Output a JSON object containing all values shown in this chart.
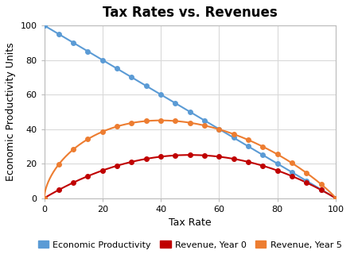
{
  "title": "Tax Rates vs. Revenues",
  "xlabel": "Tax Rate",
  "ylabel": "Economic Productivity Units",
  "xlim": [
    0,
    100
  ],
  "ylim": [
    0,
    100
  ],
  "xticks": [
    0,
    20,
    40,
    60,
    80,
    100
  ],
  "yticks": [
    0,
    20,
    40,
    60,
    80,
    100
  ],
  "line_color_productivity": "#5B9BD5",
  "line_color_year0": "#C00000",
  "line_color_year5": "#ED7D31",
  "marker_style": "o",
  "marker_size": 4,
  "legend_labels": [
    "Economic Productivity",
    "Revenue, Year 0",
    "Revenue, Year 5"
  ],
  "background_color": "#FFFFFF",
  "grid_color": "#D9D9D9",
  "title_fontsize": 12,
  "axis_label_fontsize": 9,
  "legend_fontsize": 8
}
